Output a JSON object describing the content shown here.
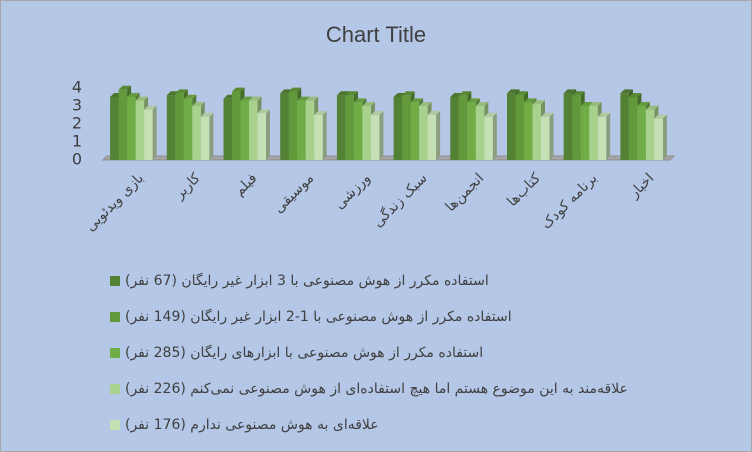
{
  "chart_data": {
    "type": "bar3d",
    "title": "Chart Title",
    "categories": [
      "بازی ویدئویی",
      "کاربر",
      "فیلم",
      "موسیقی",
      "ورزشی",
      "سبک زندگی",
      "انجمن‌ها",
      "کتاب‌ها",
      "برنامه کودک",
      "اخبار"
    ],
    "series": [
      {
        "name": "استفاده مکرر از هوش مصنوعی با 3 ابزار غیر رایگان (67 نفر)",
        "color": "#548235",
        "values": [
          3.5,
          3.6,
          3.4,
          3.7,
          3.6,
          3.5,
          3.5,
          3.7,
          3.7,
          3.7
        ]
      },
      {
        "name": "استفاده مکرر از هوش مصنوعی با 1-2 ابزار غیر رایگان (149 نفر)",
        "color": "#62993b",
        "values": [
          3.9,
          3.7,
          3.8,
          3.8,
          3.6,
          3.6,
          3.6,
          3.6,
          3.6,
          3.5
        ]
      },
      {
        "name": "استفاده مکرر از هوش مصنوعی با ابزارهای رایگان (285 نفر)",
        "color": "#70ad47",
        "values": [
          3.5,
          3.4,
          3.3,
          3.3,
          3.2,
          3.2,
          3.2,
          3.2,
          3.0,
          3.0
        ]
      },
      {
        "name": "علاقه‌مند به این موضوع هستم اما هیچ استفاده‌ای از هوش مصنوعی نمی‌کنم (226 نفر)",
        "color": "#a9d18e",
        "values": [
          3.3,
          3.0,
          3.3,
          3.3,
          3.0,
          3.0,
          3.0,
          3.1,
          3.0,
          2.8
        ]
      },
      {
        "name": "علاقه‌ای به هوش مصنوعی ندارم (176 نفر)",
        "color": "#c5e0b4",
        "values": [
          2.8,
          2.4,
          2.6,
          2.5,
          2.5,
          2.5,
          2.4,
          2.4,
          2.4,
          2.3
        ]
      }
    ],
    "ylim": [
      0,
      4
    ],
    "yticks": [
      0,
      1,
      2,
      3,
      4
    ],
    "legend": "bottom"
  }
}
